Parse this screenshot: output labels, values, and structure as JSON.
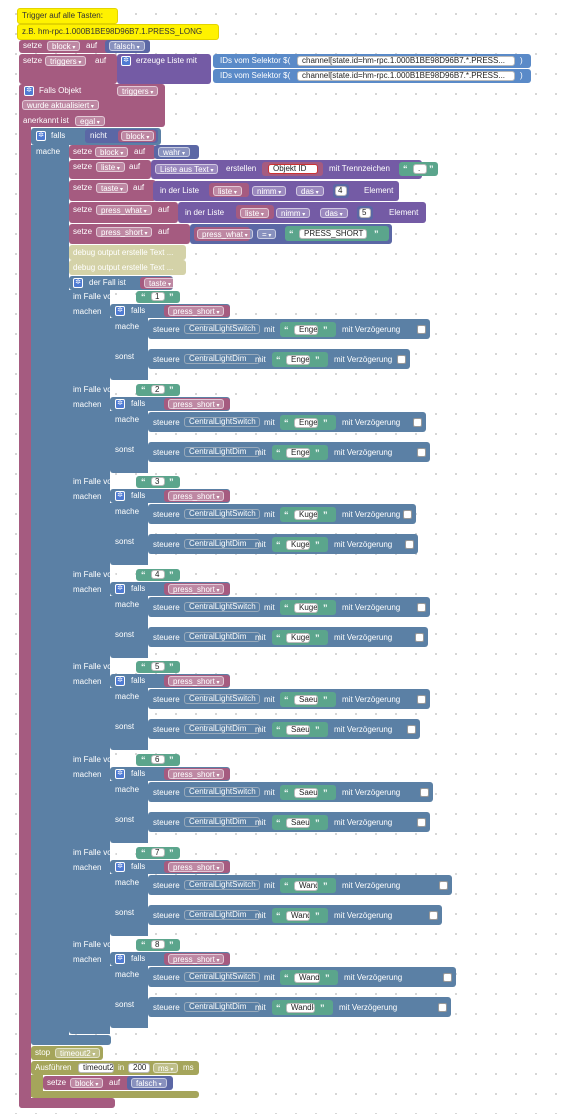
{
  "comment": {
    "line1": "Trigger auf alle Tasten:",
    "line2": "z.B. hm-rpc.1.000B1BE98D96B7.1.PRESS_LONG"
  },
  "kw": {
    "setze": "setze",
    "auf": "auf",
    "in": "in",
    "ms": "ms",
    "mit": "mit",
    "falls": "falls",
    "nicht": "nicht",
    "mache": "mache",
    "machen": "machen",
    "sonst": "sonst",
    "im_falle_von": "im Falle von",
    "steuere": "steuere",
    "mit_verzoegerung": "mit Verzögerung",
    "element": "Element",
    "in_der_liste": "in der Liste",
    "stop": "stop",
    "ausfuehren": "Ausführen"
  },
  "vars": {
    "block": "block",
    "triggers": "triggers",
    "liste": "liste",
    "taste": "taste",
    "press_what": "press_what",
    "press_short": "press_short",
    "timeout2": "timeout2",
    "central_switch": "CentralLightSwitch",
    "central_dim": "CentralLightDim"
  },
  "values": {
    "falsch": "falsch",
    "wahr": "wahr",
    "objekt_id": "Objekt ID",
    "trenn": ".",
    "nimm": "nimm",
    "das": "das",
    "n4": "4",
    "n5": "5",
    "eq": "=",
    "PRESS_SHORT": "PRESS_SHORT",
    "delay": "200",
    "ms_unit": "ms"
  },
  "blocks": {
    "erzeuge_liste": "erzeuge Liste mit",
    "ids_label": "IDs vom Selektor $(",
    "selector1": "channel[state.id=hm-rpc.1.000B1BE98D96B7.*.PRESS...",
    "selector2": "channel[state.id=hm-rpc.1.000B1BE98D96B7.*.PRESS...",
    "close_paren": ")",
    "falls_objekt": "Falls Objekt",
    "wurde_aktualisiert": "wurde aktualisiert",
    "anerkannt_ist": "anerkannt ist",
    "egal": "egal",
    "liste_aus_text": "Liste aus Text",
    "erstellen": "erstellen",
    "mit_trennzeichen": "mit Trennzeichen",
    "debug1": "debug output erstelle Text ...",
    "debug2": "debug output erstelle Text ...",
    "der_fall_ist": "der Fall ist"
  },
  "cases": [
    {
      "n": "1",
      "a": "Engel.An",
      "b": "Engel.Up"
    },
    {
      "n": "2",
      "a": "Engel.Aus",
      "b": "Engel.Down"
    },
    {
      "n": "3",
      "a": "Kugel.An",
      "b": "Kugel.Up"
    },
    {
      "n": "4",
      "a": "Kugel.Aus",
      "b": "Kugel.Down"
    },
    {
      "n": "5",
      "a": "Saeule.An",
      "b": "Saeule.Up"
    },
    {
      "n": "6",
      "a": "Saeule.Aus",
      "b": "Saeule.Down"
    },
    {
      "n": "7",
      "a": "Wandleuchte.An",
      "b": "Wandleuchte.Up"
    },
    {
      "n": "8",
      "a": "Wandleuchte.Aus",
      "b": "Wandleuchte.Down"
    }
  ],
  "colors": {
    "control": "#5b80a5",
    "logic": "#5b67a5",
    "variables": "#a55b80",
    "text": "#5ba58c",
    "lists": "#745ba5",
    "io": "#5a8ac8",
    "timeouts": "#a5a55b",
    "comment": "#fff200"
  },
  "icons": [
    "gear-icon",
    "checkbox-icon",
    "quote-icon"
  ]
}
